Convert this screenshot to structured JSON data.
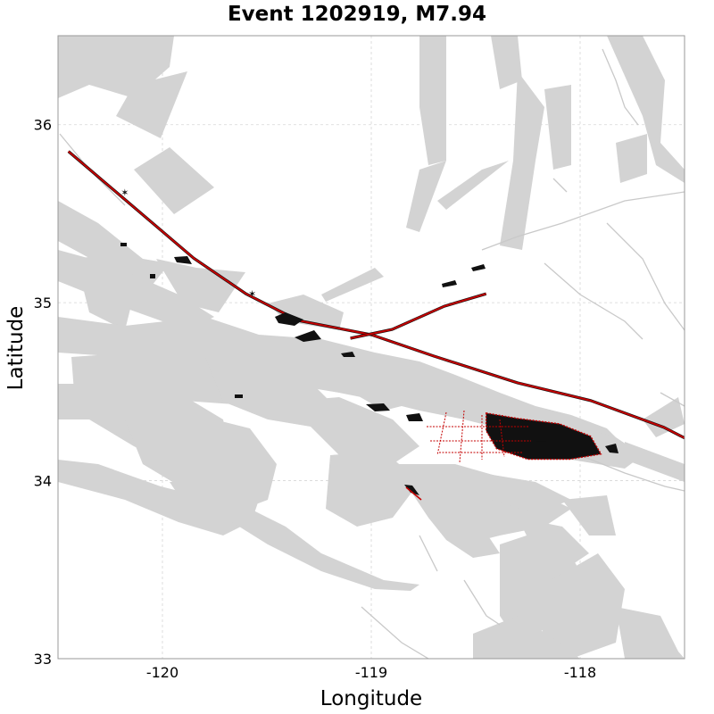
{
  "title": "Event 1202919, M7.94",
  "axes": {
    "xlabel": "Longitude",
    "ylabel": "Latitude",
    "xlim": [
      -120.5,
      -117.5
    ],
    "ylim": [
      33,
      36.5
    ],
    "x_ticks": [
      {
        "value": -120,
        "label": "-120"
      },
      {
        "value": -119,
        "label": "-119"
      },
      {
        "value": -118,
        "label": "-118"
      }
    ],
    "y_ticks": [
      {
        "value": 33,
        "label": "33"
      },
      {
        "value": 34,
        "label": "34"
      },
      {
        "value": 35,
        "label": "35"
      },
      {
        "value": 36,
        "label": "36"
      }
    ],
    "grid": true
  },
  "colors": {
    "fault_band": "#d3d3d3",
    "fault_trace": "#c9c9c9",
    "rupture": "#c40000",
    "rupture_outline": "#111111",
    "background": "#ffffff"
  },
  "chart_data": {
    "type": "map",
    "main_rupture_trace": [
      [
        -120.45,
        35.85
      ],
      [
        -120.2,
        35.6
      ],
      [
        -119.85,
        35.25
      ],
      [
        -119.6,
        35.05
      ],
      [
        -119.35,
        34.9
      ],
      [
        -119.0,
        34.82
      ],
      [
        -118.7,
        34.7
      ],
      [
        -118.3,
        34.55
      ],
      [
        -117.95,
        34.45
      ],
      [
        -117.6,
        34.3
      ],
      [
        -117.35,
        34.15
      ]
    ],
    "branch_rupture_trace": [
      [
        -119.1,
        34.8
      ],
      [
        -118.9,
        34.85
      ],
      [
        -118.65,
        34.98
      ],
      [
        -118.45,
        35.05
      ]
    ],
    "rupture_patch_outline": [
      [
        -118.45,
        34.38
      ],
      [
        -118.3,
        34.35
      ],
      [
        -118.1,
        34.32
      ],
      [
        -117.95,
        34.25
      ],
      [
        -117.9,
        34.15
      ],
      [
        -118.05,
        34.12
      ],
      [
        -118.25,
        34.12
      ],
      [
        -118.4,
        34.18
      ],
      [
        -118.45,
        34.28
      ]
    ],
    "hypocenter_markers": [
      [
        -120.18,
        35.62
      ],
      [
        -119.57,
        35.05
      ]
    ]
  }
}
